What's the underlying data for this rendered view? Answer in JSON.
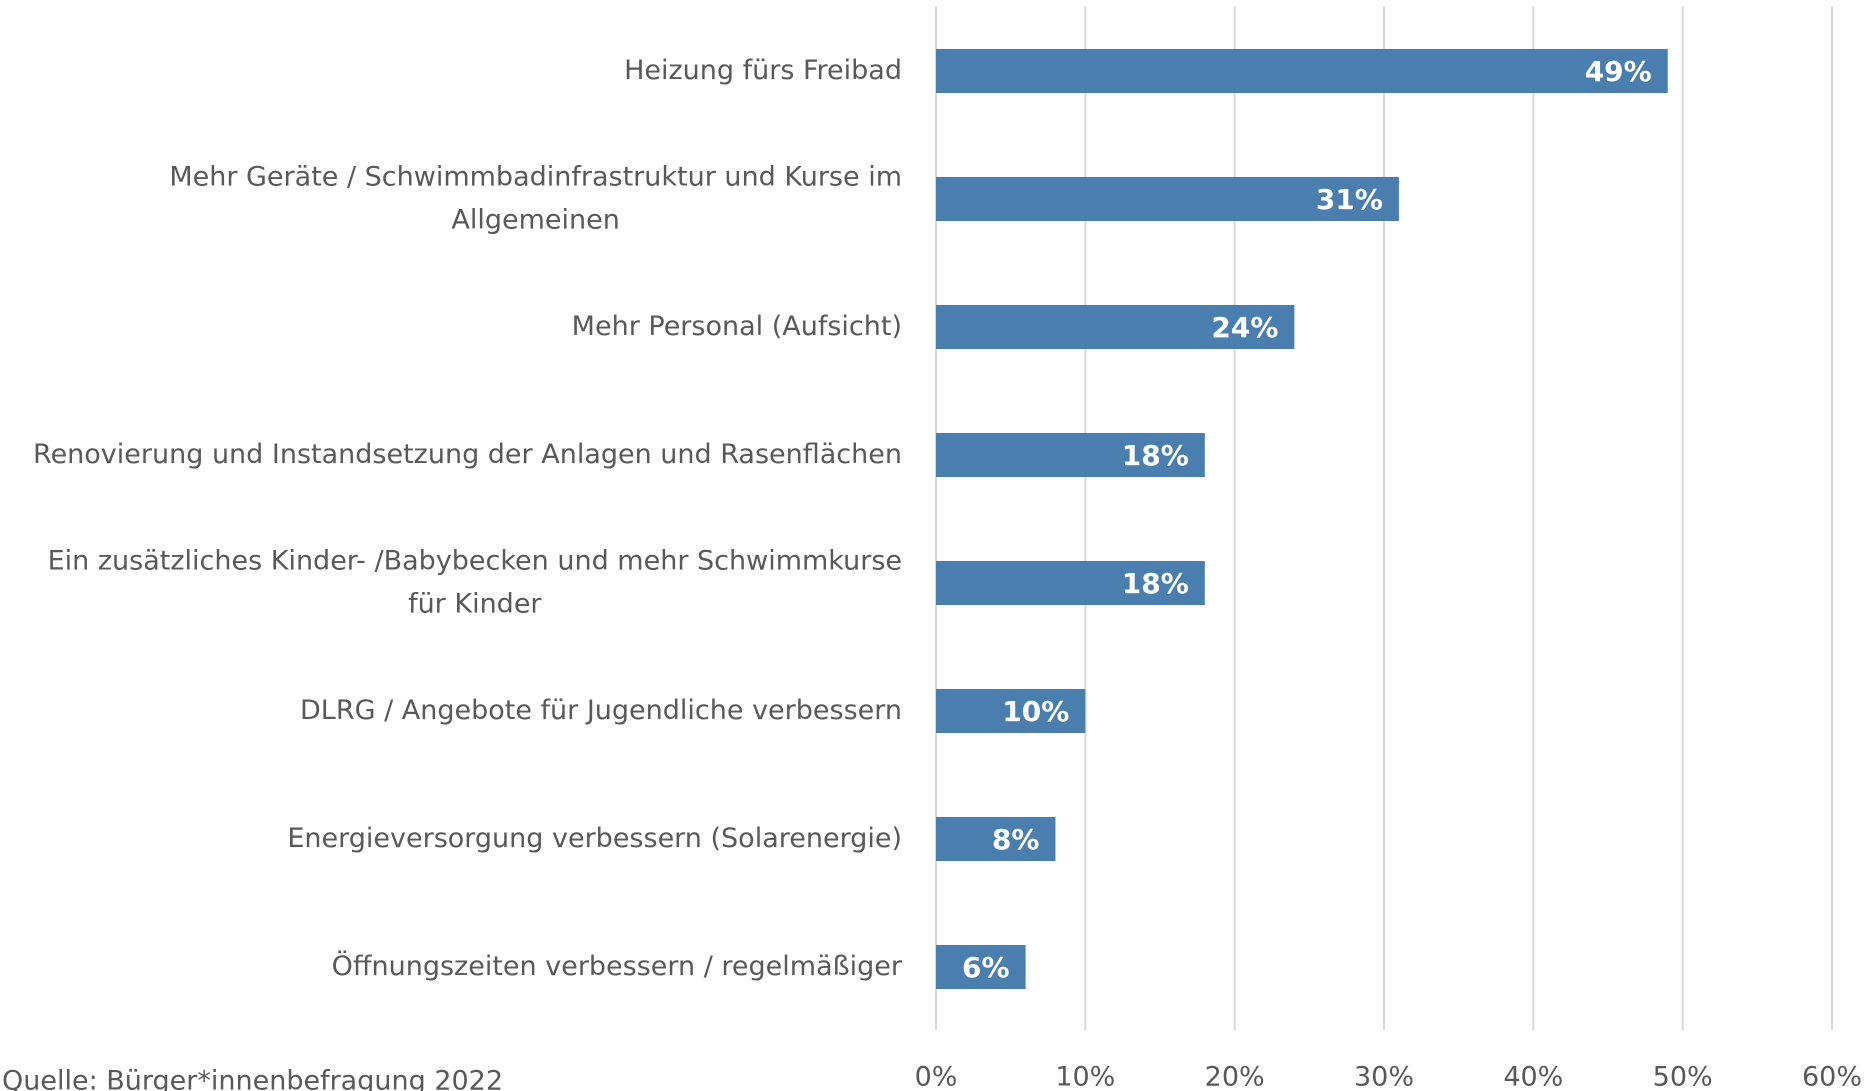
{
  "chart_data": {
    "type": "bar",
    "orientation": "horizontal",
    "categories": [
      "Heizung fürs Freibad",
      "Mehr Geräte / Schwimmbadinfrastruktur und Kurse im Allgemeinen",
      "Mehr Personal (Aufsicht)",
      "Renovierung und Instandsetzung der Anlagen und Rasenflächen",
      "Ein zusätzliches Kinder- /Babybecken und mehr Schwimmkurse für Kinder",
      "DLRG / Angebote für Jugendliche verbessern",
      "Energieversorgung verbessern (Solarenergie)",
      "Öffnungszeiten verbessern / regelmäßiger"
    ],
    "values": [
      49,
      31,
      24,
      18,
      18,
      10,
      8,
      6
    ],
    "value_labels": [
      "49%",
      "31%",
      "24%",
      "18%",
      "18%",
      "10%",
      "8%",
      "6%"
    ],
    "color": "#4a7eaf",
    "xlim": [
      0,
      60
    ],
    "xticks": [
      {
        "value": 0,
        "label": "0%"
      },
      {
        "value": 10,
        "label": "10%"
      },
      {
        "value": 20,
        "label": "20%"
      },
      {
        "value": 30,
        "label": "30%"
      },
      {
        "value": 40,
        "label": "40%"
      },
      {
        "value": 50,
        "label": "50%"
      },
      {
        "value": 60,
        "label": "60%"
      }
    ],
    "grid": true,
    "source": "Quelle: Bürger*innenbefragung 2022"
  }
}
